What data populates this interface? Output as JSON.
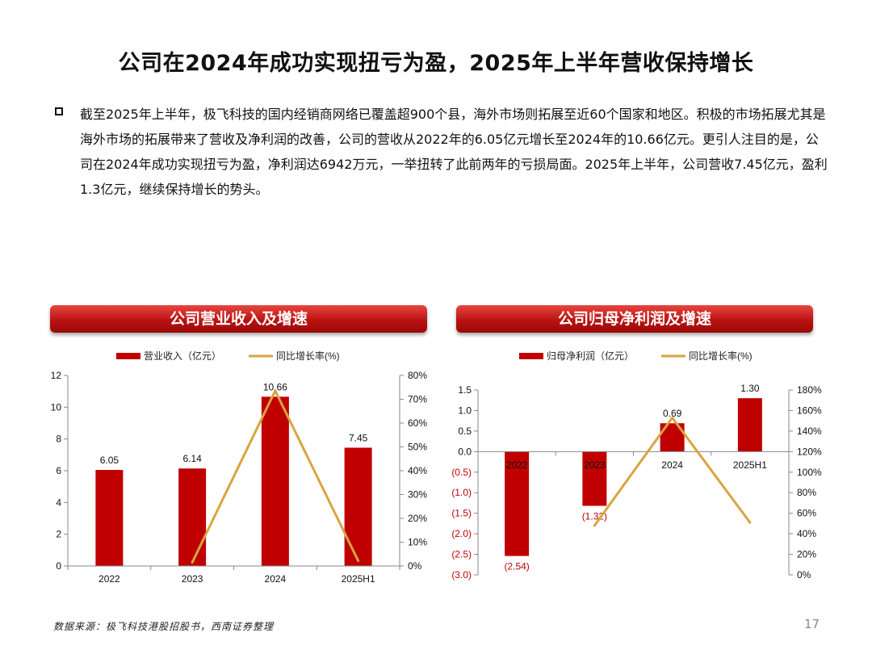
{
  "page": {
    "title": "公司在2024年成功实现扭亏为盈，2025年上半年营收保持增长",
    "paragraph": "截至2025年上半年，极飞科技的国内经销商网络已覆盖超900个县，海外市场则拓展至近60个国家和地区。积极的市场拓展尤其是海外市场的拓展带来了营收及净利润的改善，公司的营收从2022年的6.05亿元增长至2024年的10.66亿元。更引人注目的是，公司在2024年成功实现扭亏为盈，净利润达6942万元，一举扭转了此前两年的亏损局面。2025年上半年，公司营收7.45亿元，盈利1.3亿元，继续保持增长的势头。",
    "source": "数据来源：极飞科技港股招股书，西南证券整理",
    "page_number": "17"
  },
  "colors": {
    "bar": "#c00000",
    "line": "#d9a441",
    "banner": "#c0110f",
    "negative_label": "#c00000"
  },
  "chart_data": [
    {
      "type": "bar",
      "title": "公司营业收入及增速",
      "categories": [
        "2022",
        "2023",
        "2024",
        "2025H1"
      ],
      "series": [
        {
          "name": "营业收入（亿元）",
          "type": "bar",
          "axis": "left",
          "values": [
            6.05,
            6.14,
            10.66,
            7.45
          ],
          "labels": [
            "6.05",
            "6.14",
            "10.66",
            "7.45"
          ]
        },
        {
          "name": "同比增长率(%)",
          "type": "line",
          "axis": "right",
          "values": [
            null,
            1.5,
            73.6,
            2.2
          ]
        }
      ],
      "y_left": {
        "min": 0,
        "max": 12,
        "ticks": [
          "0",
          "2",
          "4",
          "6",
          "8",
          "10",
          "12"
        ]
      },
      "y_right": {
        "min": 0,
        "max": 80,
        "ticks": [
          "0%",
          "10%",
          "20%",
          "30%",
          "40%",
          "50%",
          "60%",
          "70%",
          "80%"
        ]
      },
      "legend": "top"
    },
    {
      "type": "bar",
      "title": "公司归母净利润及增速",
      "categories": [
        "2022",
        "2023",
        "2024",
        "2025H1"
      ],
      "series": [
        {
          "name": "归母净利润（亿元）",
          "type": "bar",
          "axis": "left",
          "values": [
            -2.54,
            -1.32,
            0.69,
            1.3
          ],
          "labels": [
            "(2.54)",
            "(1.32)",
            "0.69",
            "1.30"
          ]
        },
        {
          "name": "同比增长率(%)",
          "type": "line",
          "axis": "right",
          "values": [
            null,
            48,
            153,
            51
          ]
        }
      ],
      "y_left": {
        "min": -3,
        "max": 1.5,
        "ticks": [
          "(3.0)",
          "(2.5)",
          "(2.0)",
          "(1.5)",
          "(1.0)",
          "(0.5)",
          "0.0",
          "0.5",
          "1.0",
          "1.5"
        ]
      },
      "y_right": {
        "min": 0,
        "max": 180,
        "ticks": [
          "0%",
          "20%",
          "40%",
          "60%",
          "80%",
          "100%",
          "120%",
          "140%",
          "160%",
          "180%"
        ]
      },
      "legend": "top"
    }
  ]
}
